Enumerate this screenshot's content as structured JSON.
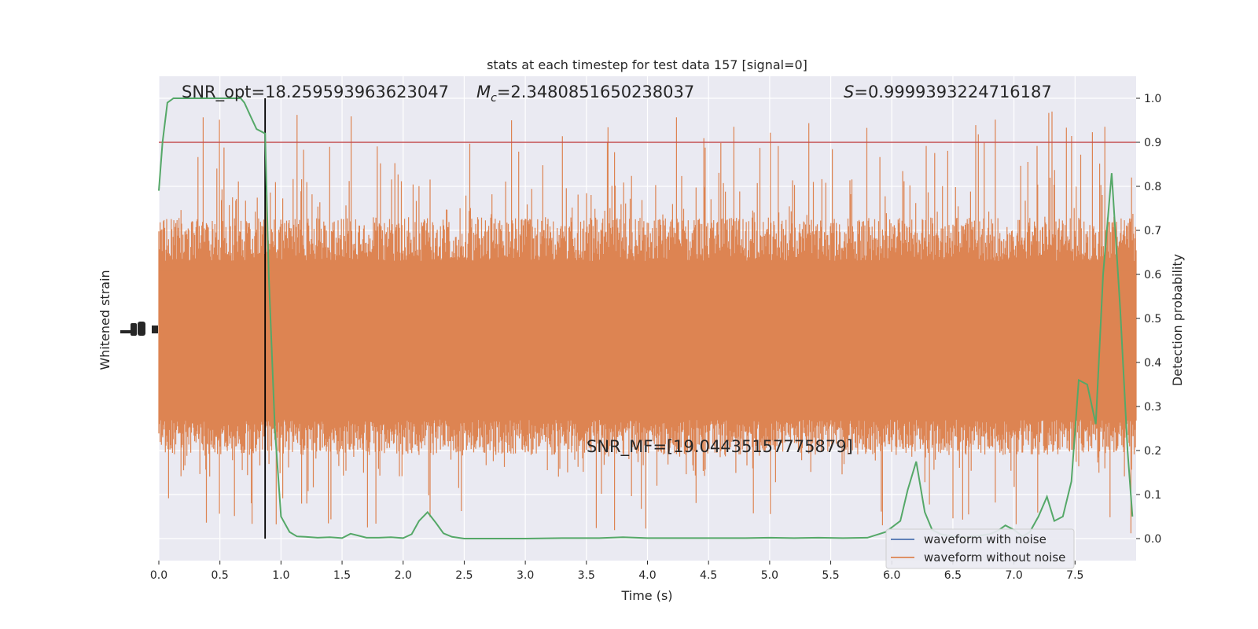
{
  "chart_data": {
    "type": "line",
    "title": "stats at each timestep for test data 157 [signal=0]",
    "xlabel": "Time (s)",
    "ylabel_left": "Whitened strain",
    "ylabel_right": "Detection probability",
    "xlim": [
      0.0,
      8.0
    ],
    "ylim_right": [
      -0.05,
      1.05
    ],
    "x_ticks": [
      "0.0",
      "0.5",
      "1.0",
      "1.5",
      "2.0",
      "2.5",
      "3.0",
      "3.5",
      "4.0",
      "4.5",
      "5.0",
      "5.5",
      "6.0",
      "6.5",
      "7.0",
      "7.5"
    ],
    "right_ticks": [
      "0.0",
      "0.1",
      "0.2",
      "0.3",
      "0.4",
      "0.5",
      "0.6",
      "0.7",
      "0.8",
      "0.9",
      "1.0"
    ],
    "annotations": {
      "snr_opt": "SNR_opt=18.259593963623047",
      "mc_symbol": "M",
      "mc_sub": "c",
      "mc_value": "=2.3480851650238037",
      "s_symbol": "S",
      "s_value": "=0.9999393224716187",
      "snr_mf": "SNR_MF=[19.04435157775879]"
    },
    "threshold": 0.9,
    "vline_x": 0.87,
    "legend": {
      "placement": "lower-right",
      "entries": [
        {
          "label": "waveform with noise",
          "color": "#4c72b0"
        },
        {
          "label": "waveform without noise",
          "color": "#dd8452"
        }
      ]
    },
    "colors": {
      "background": "#eaeaf2",
      "grid": "#ffffff",
      "waveform_without_noise": "#dd8452",
      "waveform_with_noise": "#4c72b0",
      "probability": "#55a868",
      "threshold": "#c44e52",
      "vline": "#000000"
    },
    "series": [
      {
        "name": "probability",
        "x": [
          0.0,
          0.03,
          0.07,
          0.12,
          0.2,
          0.3,
          0.4,
          0.5,
          0.6,
          0.67,
          0.7,
          0.75,
          0.8,
          0.87,
          0.9,
          0.95,
          1.0,
          1.07,
          1.13,
          1.2,
          1.3,
          1.4,
          1.5,
          1.57,
          1.63,
          1.7,
          1.8,
          1.9,
          2.0,
          2.07,
          2.13,
          2.2,
          2.27,
          2.33,
          2.4,
          2.5,
          2.7,
          3.0,
          3.3,
          3.6,
          3.8,
          4.0,
          4.2,
          4.5,
          4.8,
          5.0,
          5.2,
          5.4,
          5.6,
          5.8,
          5.95,
          6.07,
          6.13,
          6.2,
          6.27,
          6.33,
          6.4,
          6.5,
          6.6,
          6.7,
          6.8,
          6.87,
          6.93,
          7.0,
          7.07,
          7.13,
          7.2,
          7.27,
          7.33,
          7.4,
          7.47,
          7.53,
          7.6,
          7.67,
          7.73,
          7.8,
          7.87,
          7.93,
          7.97
        ],
        "y": [
          0.79,
          0.9,
          0.99,
          1.0,
          1.0,
          1.0,
          1.0,
          1.0,
          1.0,
          1.0,
          0.99,
          0.96,
          0.93,
          0.92,
          0.6,
          0.25,
          0.05,
          0.015,
          0.005,
          0.004,
          0.002,
          0.003,
          0.001,
          0.011,
          0.007,
          0.002,
          0.002,
          0.003,
          0.001,
          0.01,
          0.04,
          0.06,
          0.035,
          0.012,
          0.004,
          0.0,
          0.0,
          0.0,
          0.001,
          0.001,
          0.003,
          0.001,
          0.001,
          0.001,
          0.001,
          0.002,
          0.001,
          0.002,
          0.001,
          0.002,
          0.015,
          0.04,
          0.11,
          0.175,
          0.06,
          0.02,
          0.01,
          0.005,
          0.004,
          0.006,
          0.01,
          0.018,
          0.03,
          0.02,
          0.005,
          0.015,
          0.05,
          0.095,
          0.04,
          0.05,
          0.13,
          0.36,
          0.35,
          0.26,
          0.6,
          0.83,
          0.52,
          0.2,
          0.05
        ]
      },
      {
        "name": "waveform without noise",
        "representation": "dense noise band spanning roughly 0.2 to 0.65 (right-axis units) with spikes up to ~0.97 and down to ~0.01"
      }
    ]
  }
}
